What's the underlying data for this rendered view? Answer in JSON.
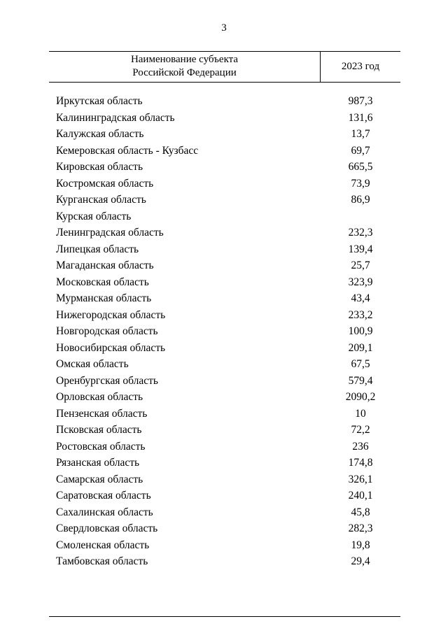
{
  "page": {
    "number": "3"
  },
  "table": {
    "header": {
      "name_line1": "Наименование субъекта",
      "name_line2": "Российской Федерации",
      "year": "2023 год"
    },
    "rows": [
      {
        "name": "Иркутская область",
        "value": "987,3"
      },
      {
        "name": "Калининградская область",
        "value": "131,6"
      },
      {
        "name": "Калужская область",
        "value": "13,7"
      },
      {
        "name": "Кемеровская область - Кузбасс",
        "value": "69,7"
      },
      {
        "name": "Кировская область",
        "value": "665,5"
      },
      {
        "name": "Костромская область",
        "value": "73,9"
      },
      {
        "name": "Курганская область",
        "value": "86,9"
      },
      {
        "name": "Курская область",
        "value": ""
      },
      {
        "name": "Ленинградская область",
        "value": "232,3"
      },
      {
        "name": "Липецкая область",
        "value": "139,4"
      },
      {
        "name": "Магаданская область",
        "value": "25,7"
      },
      {
        "name": "Московская область",
        "value": "323,9"
      },
      {
        "name": "Мурманская область",
        "value": "43,4"
      },
      {
        "name": "Нижегородская область",
        "value": "233,2"
      },
      {
        "name": "Новгородская область",
        "value": "100,9"
      },
      {
        "name": "Новосибирская область",
        "value": "209,1"
      },
      {
        "name": "Омская область",
        "value": "67,5"
      },
      {
        "name": "Оренбургская область",
        "value": "579,4"
      },
      {
        "name": "Орловская область",
        "value": "2090,2"
      },
      {
        "name": "Пензенская область",
        "value": "10"
      },
      {
        "name": "Псковская область",
        "value": "72,2"
      },
      {
        "name": "Ростовская область",
        "value": "236"
      },
      {
        "name": "Рязанская область",
        "value": "174,8"
      },
      {
        "name": "Самарская область",
        "value": "326,1"
      },
      {
        "name": "Саратовская область",
        "value": "240,1"
      },
      {
        "name": "Сахалинская область",
        "value": "45,8"
      },
      {
        "name": "Свердловская область",
        "value": "282,3"
      },
      {
        "name": "Смоленская область",
        "value": "19,8"
      },
      {
        "name": "Тамбовская область",
        "value": "29,4"
      }
    ]
  }
}
